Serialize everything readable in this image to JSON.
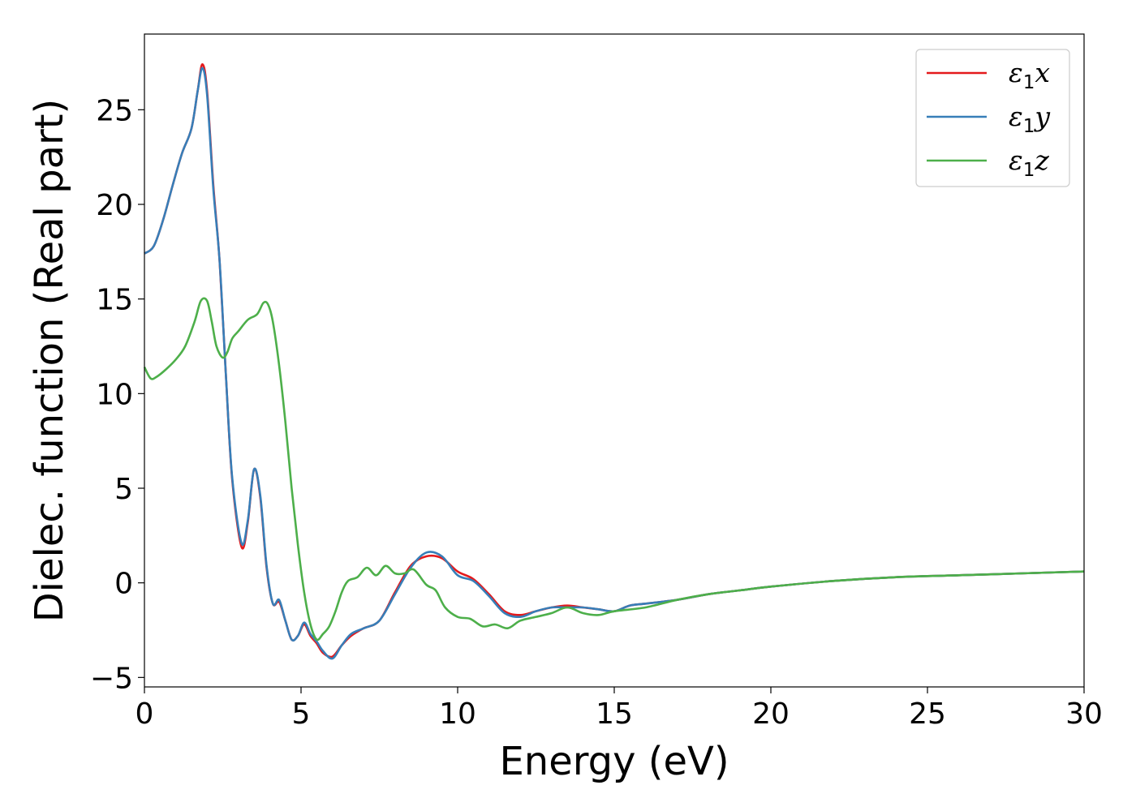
{
  "chart_data": {
    "type": "line",
    "title": "",
    "xlabel": "Energy (eV)",
    "ylabel": "Dielec. function (Real part)",
    "xlim": [
      0,
      30
    ],
    "ylim": [
      -5.5,
      29
    ],
    "xticks": [
      0,
      5,
      10,
      15,
      20,
      25,
      30
    ],
    "xtick_labels": [
      "0",
      "5",
      "10",
      "15",
      "20",
      "25",
      "30"
    ],
    "yticks": [
      -5,
      0,
      5,
      10,
      15,
      20,
      25
    ],
    "ytick_labels": [
      "−5",
      "0",
      "5",
      "10",
      "15",
      "20",
      "25"
    ],
    "grid": false,
    "legend_position": "top-right",
    "series": [
      {
        "name": "ε1x",
        "legend_symbol": "ε",
        "legend_sub": "1",
        "legend_var": "x",
        "color": "#e41a1c",
        "x": [
          0,
          0.3,
          0.6,
          0.9,
          1.2,
          1.5,
          1.7,
          1.85,
          2.0,
          2.2,
          2.4,
          2.6,
          2.8,
          3.1,
          3.3,
          3.5,
          3.7,
          3.9,
          4.1,
          4.3,
          4.5,
          4.7,
          4.9,
          5.1,
          5.3,
          5.5,
          5.7,
          6.0,
          6.3,
          6.6,
          7.0,
          7.5,
          8.0,
          8.5,
          9.0,
          9.5,
          10.0,
          10.5,
          11.0,
          11.5,
          12.0,
          12.5,
          13.0,
          13.5,
          14.0,
          14.5,
          15.0,
          15.5,
          16.0,
          17.0,
          18.0,
          19.0,
          20.0,
          22.0,
          24.0,
          26.0,
          28.0,
          30.0
        ],
        "y": [
          17.4,
          17.8,
          19.2,
          21.0,
          22.7,
          24.0,
          26.0,
          27.4,
          26.0,
          21.0,
          17.0,
          11.0,
          5.5,
          1.9,
          3.2,
          6.0,
          4.5,
          0.8,
          -1.1,
          -1.0,
          -2.0,
          -3.0,
          -2.8,
          -2.2,
          -2.8,
          -3.2,
          -3.7,
          -3.9,
          -3.3,
          -2.8,
          -2.4,
          -2.0,
          -0.5,
          0.9,
          1.4,
          1.3,
          0.6,
          0.2,
          -0.6,
          -1.5,
          -1.7,
          -1.5,
          -1.3,
          -1.2,
          -1.3,
          -1.4,
          -1.5,
          -1.2,
          -1.1,
          -0.9,
          -0.6,
          -0.4,
          -0.2,
          0.1,
          0.3,
          0.4,
          0.5,
          0.6
        ]
      },
      {
        "name": "ε1y",
        "legend_symbol": "ε",
        "legend_sub": "1",
        "legend_var": "y",
        "color": "#377eb8",
        "x": [
          0,
          0.3,
          0.6,
          0.9,
          1.2,
          1.5,
          1.7,
          1.85,
          2.0,
          2.2,
          2.4,
          2.6,
          2.8,
          3.1,
          3.3,
          3.5,
          3.7,
          3.9,
          4.1,
          4.3,
          4.5,
          4.7,
          4.9,
          5.1,
          5.3,
          5.5,
          5.7,
          6.0,
          6.3,
          6.6,
          7.0,
          7.5,
          8.0,
          8.5,
          9.0,
          9.5,
          10.0,
          10.5,
          11.0,
          11.5,
          12.0,
          12.5,
          13.0,
          13.5,
          14.0,
          14.5,
          15.0,
          15.5,
          16.0,
          17.0,
          18.0,
          19.0,
          20.0,
          22.0,
          24.0,
          26.0,
          28.0,
          30.0
        ],
        "y": [
          17.4,
          17.8,
          19.2,
          21.0,
          22.7,
          24.0,
          26.0,
          27.2,
          25.8,
          20.8,
          17.0,
          11.0,
          5.6,
          2.1,
          3.3,
          6.0,
          4.6,
          0.9,
          -1.1,
          -0.9,
          -2.0,
          -3.0,
          -2.8,
          -2.1,
          -2.7,
          -3.1,
          -3.6,
          -4.0,
          -3.3,
          -2.7,
          -2.4,
          -2.0,
          -0.6,
          0.8,
          1.6,
          1.4,
          0.4,
          0.1,
          -0.7,
          -1.6,
          -1.8,
          -1.5,
          -1.3,
          -1.3,
          -1.3,
          -1.4,
          -1.5,
          -1.2,
          -1.1,
          -0.9,
          -0.6,
          -0.4,
          -0.2,
          0.1,
          0.3,
          0.4,
          0.5,
          0.6
        ]
      },
      {
        "name": "ε1z",
        "legend_symbol": "ε",
        "legend_sub": "1",
        "legend_var": "z",
        "color": "#4daf4a",
        "x": [
          0,
          0.2,
          0.4,
          0.7,
          1.0,
          1.3,
          1.6,
          1.8,
          2.0,
          2.15,
          2.3,
          2.5,
          2.65,
          2.8,
          3.0,
          3.3,
          3.6,
          3.8,
          3.95,
          4.1,
          4.3,
          4.5,
          4.7,
          4.9,
          5.1,
          5.3,
          5.5,
          5.7,
          5.9,
          6.1,
          6.3,
          6.5,
          6.8,
          7.1,
          7.4,
          7.7,
          8.0,
          8.3,
          8.6,
          9.0,
          9.3,
          9.6,
          10.0,
          10.4,
          10.8,
          11.2,
          11.6,
          12.0,
          12.5,
          13.0,
          13.5,
          14.0,
          14.5,
          15.0,
          16.0,
          17.0,
          18.0,
          19.0,
          20.0,
          22.0,
          24.0,
          26.0,
          28.0,
          30.0
        ],
        "y": [
          11.4,
          10.8,
          10.9,
          11.3,
          11.8,
          12.5,
          13.8,
          14.9,
          14.9,
          13.8,
          12.5,
          11.9,
          12.2,
          12.9,
          13.3,
          13.9,
          14.2,
          14.8,
          14.7,
          13.8,
          11.5,
          8.5,
          5.0,
          2.0,
          -0.5,
          -2.2,
          -3.0,
          -2.7,
          -2.3,
          -1.5,
          -0.5,
          0.1,
          0.3,
          0.8,
          0.4,
          0.9,
          0.5,
          0.5,
          0.7,
          -0.1,
          -0.4,
          -1.3,
          -1.8,
          -1.9,
          -2.3,
          -2.2,
          -2.4,
          -2.0,
          -1.8,
          -1.6,
          -1.3,
          -1.6,
          -1.7,
          -1.5,
          -1.3,
          -0.9,
          -0.6,
          -0.4,
          -0.2,
          0.1,
          0.3,
          0.4,
          0.5,
          0.6
        ]
      }
    ]
  }
}
